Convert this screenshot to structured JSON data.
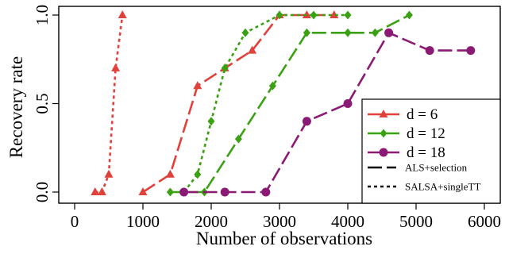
{
  "chart_data": {
    "type": "line",
    "xlabel": "Number of observations",
    "ylabel": "Recovery rate",
    "xlim": [
      0,
      6000
    ],
    "ylim": [
      0,
      1
    ],
    "xticks": [
      0,
      1000,
      2000,
      3000,
      4000,
      5000,
      6000
    ],
    "yticks": [
      0.0,
      0.5,
      1.0
    ],
    "xtick_labels": [
      "0",
      "1000",
      "2000",
      "3000",
      "4000",
      "5000",
      "6000"
    ],
    "ytick_labels": [
      "0.0",
      "0.5",
      "1.0"
    ],
    "grid": false,
    "legend_position": "bottom-right",
    "series_styles": {
      "d6": {
        "color": "#e0413a",
        "marker": "triangle"
      },
      "d12": {
        "color": "#3aa112",
        "marker": "diamond"
      },
      "d18": {
        "color": "#8b1a74",
        "marker": "circle"
      }
    },
    "series": [
      {
        "group": "d6",
        "method": "ALS+selection",
        "x": [
          1000,
          1400,
          1800,
          2200,
          2600,
          3000,
          3400,
          3800
        ],
        "y": [
          0.0,
          0.1,
          0.6,
          0.7,
          0.8,
          1.0,
          1.0,
          1.0
        ]
      },
      {
        "group": "d6",
        "method": "SALSA+singleTT",
        "x": [
          300,
          400,
          500,
          600,
          700
        ],
        "y": [
          0.0,
          0.0,
          0.1,
          0.7,
          1.0
        ]
      },
      {
        "group": "d12",
        "method": "ALS+selection",
        "x": [
          1400,
          1900,
          2400,
          2900,
          3400,
          4000,
          4400,
          4900
        ],
        "y": [
          0.0,
          0.0,
          0.3,
          0.6,
          0.9,
          0.9,
          0.9,
          1.0
        ]
      },
      {
        "group": "d12",
        "method": "SALSA+singleTT",
        "x": [
          1600,
          1800,
          2000,
          2200,
          2500,
          3000,
          3500,
          4000
        ],
        "y": [
          0.0,
          0.1,
          0.4,
          0.7,
          0.9,
          1.0,
          1.0,
          1.0
        ]
      },
      {
        "group": "d18",
        "method": "ALS+selection",
        "x": [
          1600,
          2200,
          2800,
          3400,
          4000,
          4600,
          5200,
          5800
        ],
        "y": [
          0.0,
          0.0,
          0.0,
          0.4,
          0.5,
          0.9,
          0.8,
          0.8
        ]
      }
    ],
    "legend": {
      "entries": [
        {
          "label": "d = 6",
          "group": "d6"
        },
        {
          "label": "d = 12",
          "group": "d12"
        },
        {
          "label": "d = 18",
          "group": "d18"
        }
      ],
      "methods": [
        {
          "label": "ALS+selection",
          "dash": "long-dash"
        },
        {
          "label": "SALSA+singleTT",
          "dash": "dotted"
        }
      ]
    }
  }
}
